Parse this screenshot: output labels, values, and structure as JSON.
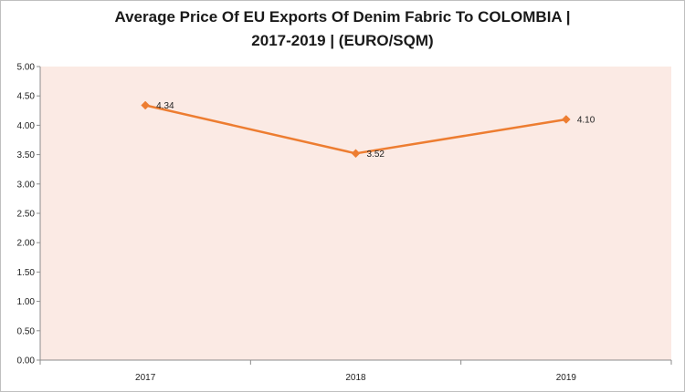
{
  "chart_data": {
    "type": "line",
    "title_line1": "Average Price Of EU Exports Of Denim Fabric To COLOMBIA |",
    "title_line2": "2017-2019 | (EURO/SQM)",
    "xlabel": "",
    "ylabel": "",
    "categories": [
      "2017",
      "2018",
      "2019"
    ],
    "series": [
      {
        "values": [
          4.34,
          3.52,
          4.1
        ],
        "labels": [
          "4.34",
          "3.52",
          "4.10"
        ],
        "color": "#ED7D31"
      }
    ],
    "ylim": [
      0,
      5
    ],
    "yticks": [
      "0.00",
      "0.50",
      "1.00",
      "1.50",
      "2.00",
      "2.50",
      "3.00",
      "3.50",
      "4.00",
      "4.50",
      "5.00"
    ],
    "grid": false,
    "legend": "none",
    "plot_background": "#FBEAE4",
    "marker": "diamond"
  }
}
